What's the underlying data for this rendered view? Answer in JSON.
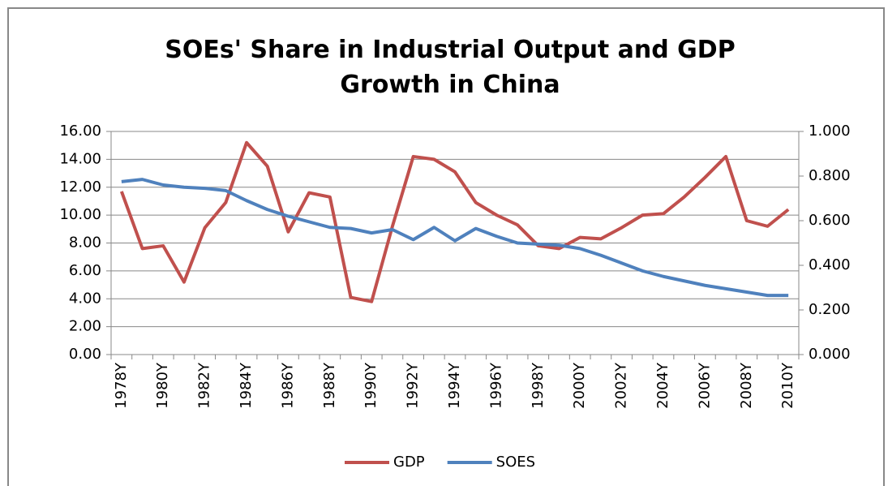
{
  "chart_data": {
    "type": "line",
    "title": "SOEs' Share in Industrial Output and GDP Growth in China",
    "categories": [
      "1978Y",
      null,
      "1980Y",
      null,
      "1982Y",
      null,
      "1984Y",
      null,
      "1986Y",
      null,
      "1988Y",
      null,
      "1990Y",
      null,
      "1992Y",
      null,
      "1994Y",
      null,
      "1996Y",
      null,
      "1998Y",
      null,
      "2000Y",
      null,
      "2002Y",
      null,
      "2004Y",
      null,
      "2006Y",
      null,
      "2008Y",
      null,
      "2010Y"
    ],
    "series": [
      {
        "name": "GDP",
        "color": "#c0504d",
        "values": [
          11.7,
          7.6,
          7.8,
          5.2,
          9.1,
          10.9,
          15.2,
          13.5,
          8.8,
          11.6,
          11.3,
          4.1,
          3.8,
          9.2,
          14.2,
          14.0,
          13.1,
          10.9,
          10.0,
          9.3,
          7.8,
          7.6,
          8.4,
          8.3,
          9.1,
          10.0,
          10.1,
          11.3,
          12.7,
          14.2,
          9.6,
          9.2,
          10.4
        ]
      },
      {
        "name": "SOES",
        "color": "#4f81bd",
        "axis": "y2",
        "values": [
          0.775,
          0.785,
          0.76,
          0.75,
          0.745,
          0.735,
          0.69,
          0.65,
          0.62,
          0.595,
          0.57,
          0.565,
          0.545,
          0.56,
          0.515,
          0.57,
          0.51,
          0.565,
          0.53,
          0.5,
          0.495,
          0.49,
          0.475,
          0.445,
          0.41,
          0.375,
          0.35,
          0.33,
          0.31,
          0.295,
          0.28,
          0.265,
          0.265
        ]
      }
    ],
    "ylim": [
      0,
      16
    ],
    "yticks": [
      {
        "value": 0,
        "label": "0.00"
      },
      {
        "value": 2,
        "label": "2.00"
      },
      {
        "value": 4,
        "label": "4.00"
      },
      {
        "value": 6,
        "label": "6.00"
      },
      {
        "value": 8,
        "label": "8.00"
      },
      {
        "value": 10,
        "label": "10.00"
      },
      {
        "value": 12,
        "label": "12.00"
      },
      {
        "value": 14,
        "label": "14.00"
      },
      {
        "value": 16,
        "label": "16.00"
      }
    ],
    "y2lim": [
      0,
      1
    ],
    "y2ticks": [
      {
        "value": 0,
        "label": "0.000"
      },
      {
        "value": 0.2,
        "label": "0.200"
      },
      {
        "value": 0.4,
        "label": "0.400"
      },
      {
        "value": 0.6,
        "label": "0.600"
      },
      {
        "value": 0.8,
        "label": "0.800"
      },
      {
        "value": 1,
        "label": "1.000"
      }
    ],
    "grid": true,
    "legend": "bottom"
  }
}
